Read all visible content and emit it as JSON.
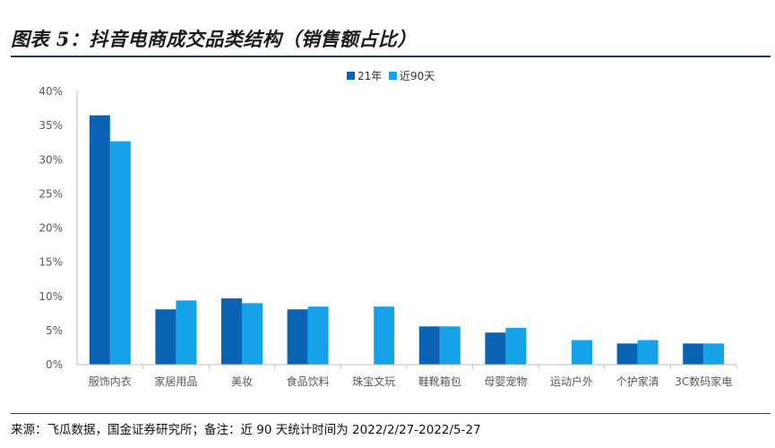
{
  "header": {
    "title": "图表 5：抖音电商成交品类结构（销售额占比）"
  },
  "footer": {
    "source": "来源：飞瓜数据，国金证券研究所；备注：近 90 天统计时间为 2022/2/27-2022/5-27"
  },
  "colors": {
    "series_1": "#0b63b3",
    "series_2": "#16a2e8",
    "axis": "#bfbfbf",
    "rule": "#1f3a68"
  },
  "chart_data": {
    "type": "bar",
    "title": "",
    "xlabel": "",
    "ylabel": "",
    "categories": [
      "服饰内衣",
      "家居用品",
      "美妆",
      "食品饮料",
      "珠宝文玩",
      "鞋靴箱包",
      "母婴宠物",
      "运动户外",
      "个护家清",
      "3C数码家电"
    ],
    "series": [
      {
        "name": "21年",
        "values": [
          36.5,
          8.1,
          9.7,
          8.1,
          0,
          5.6,
          4.7,
          0,
          3.1,
          3.1
        ]
      },
      {
        "name": "近90天",
        "values": [
          32.7,
          9.4,
          9.0,
          8.5,
          8.5,
          5.6,
          5.4,
          3.6,
          3.6,
          3.1
        ]
      }
    ],
    "ylim": [
      0,
      40
    ],
    "yticks": [
      "0%",
      "5%",
      "10%",
      "15%",
      "20%",
      "25%",
      "30%",
      "35%",
      "40%"
    ],
    "y_format": "percent",
    "grid": false,
    "legend_position": "top-center"
  }
}
